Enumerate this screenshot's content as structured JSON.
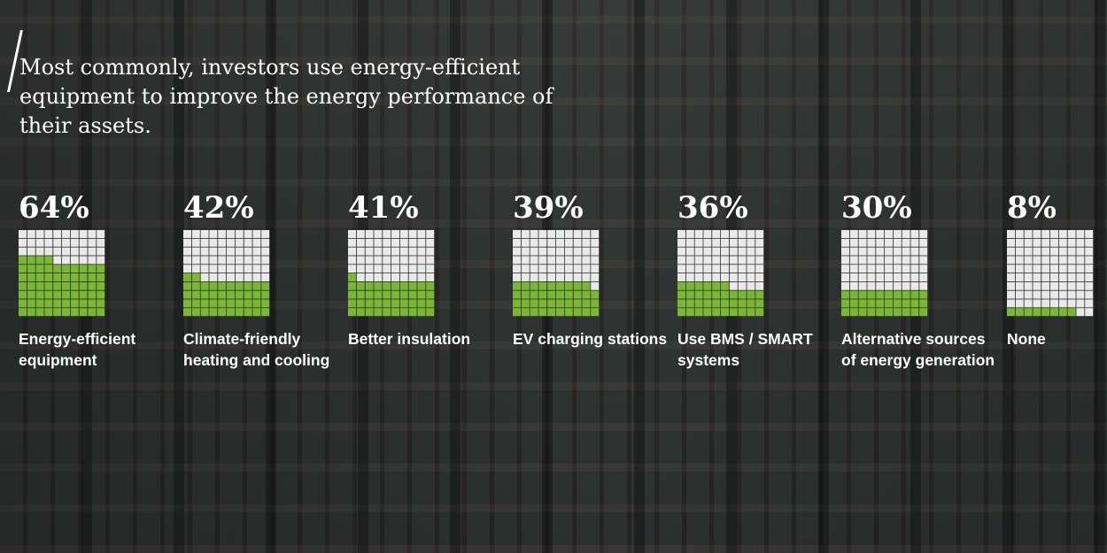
{
  "headline": "Most commonly, investors use energy-efficient equipment to improve the energy performance of their assets.",
  "colors": {
    "filled": "#7ab833",
    "empty": "#e9e9e9"
  },
  "chart_data": {
    "type": "waffle",
    "title": "Most commonly, investors use energy-efficient equipment to improve the energy performance of their assets.",
    "unit": "%",
    "grid_cells": 100,
    "items": [
      {
        "label": "Energy-efficient equipment",
        "value": 64,
        "value_label": "64%"
      },
      {
        "label": "Climate-friendly heating and cooling",
        "value": 42,
        "value_label": "42%"
      },
      {
        "label": "Better insulation",
        "value": 41,
        "value_label": "41%"
      },
      {
        "label": "EV charging stations",
        "value": 39,
        "value_label": "39%"
      },
      {
        "label": "Use BMS / SMART systems",
        "value": 36,
        "value_label": "36%"
      },
      {
        "label": "Alternative sources of energy generation",
        "value": 30,
        "value_label": "30%"
      },
      {
        "label": "None",
        "value": 8,
        "value_label": "8%"
      }
    ]
  }
}
